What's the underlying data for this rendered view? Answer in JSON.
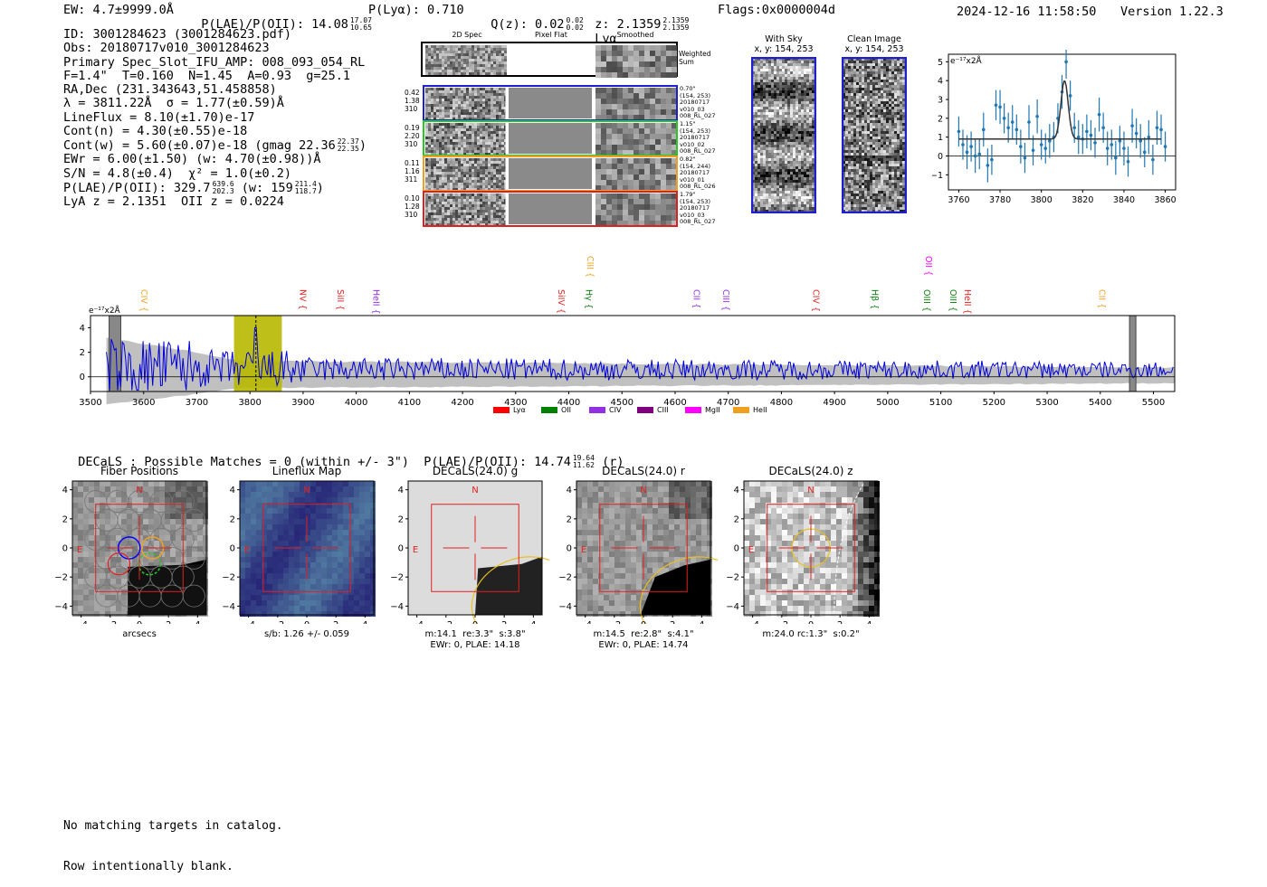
{
  "header": {
    "ew": "EW: 4.7±9999.0Å",
    "plae_label": "P(LAE)/P(OII): 14.08",
    "plae_hi": "17.07",
    "plae_lo": "10.65",
    "plya": "P(Lyα): 0.710",
    "qz_label": "Q(z): 0.02",
    "qz_hi": "0.02",
    "qz_lo": "0.02",
    "z_label": "z: 2.1359",
    "z_hi": "2.1359",
    "z_lo": "2.1359",
    "z_line": "Lyα",
    "flags": "Flags:0x0000004d",
    "datetime": "2024-12-16 11:58:50",
    "version": "Version 1.22.3"
  },
  "info": {
    "id": "ID: 3001284623 (3001284623.pdf)",
    "obs": "Obs: 20180717v010_3001284623",
    "primary": "Primary Spec_Slot_IFU_AMP: 008_093_054_RL",
    "params": "F=1.4\"  T=0.160  N=1.45  A=0.93  g=25.1",
    "radec": "RA,Dec (231.343643,51.458858)",
    "lambda": "λ = 3811.22Å  σ = 1.77(±0.59)Å",
    "lineflux": "LineFlux = 8.10(±1.70)e-17",
    "contn": "Cont(n) = 4.30(±0.55)e-18",
    "contw": "Cont(w) = 5.60(±0.07)e-18 (gmag 22.36",
    "gmag_hi": "22.37",
    "gmag_lo": "22.35",
    "contw_close": ")",
    "ewr": "EWr = 6.00(±1.50) (w: 4.70(±0.98))Å",
    "sn": "S/N = 4.8(±0.4)  χ² = 1.0(±0.2)",
    "plae2": "P(LAE)/P(OII): 329.7",
    "plae2_hi": "639.6",
    "plae2_lo": "202.3",
    "plae2_w": "(w: 159",
    "plae2_w_hi": "211.4",
    "plae2_w_lo": "118.7",
    "plae2_close": ")",
    "lyaz": "LyA z = 2.1351  OII z = 0.0224"
  },
  "cutouts": {
    "col_2d": "2D Spec",
    "col_flat": "Pixel Flat",
    "col_smooth": "Smoothed",
    "weighted": "Weighted\nSum",
    "rows": [
      {
        "left": "0.42\n1.38\n310",
        "right": "0.70\"\n(154, 253)\n20180717\nv010_03\n008_RL_027",
        "color": "#1f1fd0"
      },
      {
        "left": "0.19\n2.20\n310",
        "right": "1.15\"\n(154, 253)\n20180717\nv010_02\n008_RL_027",
        "color": "#22cc22"
      },
      {
        "left": "0.11\n1.16\n311",
        "right": "0.82\"\n(154, 244)\n20180717\nv010_01\n008_RL_026",
        "color": "#f0a020"
      },
      {
        "left": "0.10\n1.28\n310",
        "right": "1.79\"\n(154, 253)\n20180717\nv010_03\n008_RL_027",
        "color": "#e02020"
      }
    ]
  },
  "sky": {
    "with_sky": "With Sky",
    "with_sky_xy": "x, y: 154, 253",
    "clean": "Clean Image",
    "clean_xy": "x, y: 154, 253"
  },
  "zoom_chart": {
    "unit": "e⁻¹⁷x2Å",
    "x_ticks": [
      "3760",
      "3780",
      "3800",
      "3820",
      "3840",
      "3860"
    ],
    "y_ticks": [
      "5",
      "4",
      "3",
      "2",
      "1",
      "0",
      "−1"
    ]
  },
  "chart_data": [
    {
      "type": "scatter",
      "title": "",
      "xlabel": "",
      "ylabel": "e-17 x2Å",
      "xlim": [
        3755,
        3865
      ],
      "ylim": [
        -1.8,
        5.4
      ],
      "fit": {
        "center": 3811.22,
        "sigma": 1.77,
        "peak": 4.0,
        "continuum": 0.9
      },
      "x": [
        3760,
        3762,
        3764,
        3766,
        3768,
        3770,
        3772,
        3774,
        3776,
        3778,
        3780,
        3782,
        3784,
        3786,
        3788,
        3790,
        3792,
        3794,
        3796,
        3798,
        3800,
        3802,
        3804,
        3806,
        3808,
        3810,
        3812,
        3814,
        3816,
        3818,
        3820,
        3822,
        3824,
        3826,
        3828,
        3830,
        3832,
        3834,
        3836,
        3838,
        3840,
        3842,
        3844,
        3846,
        3848,
        3850,
        3852,
        3854,
        3856,
        3858,
        3860
      ],
      "y": [
        1.3,
        0.6,
        0.2,
        0.5,
        0.0,
        0.1,
        1.4,
        -0.5,
        -0.2,
        2.7,
        2.6,
        2.0,
        1.5,
        1.8,
        1.4,
        0.5,
        -0.1,
        1.8,
        0.3,
        2.1,
        0.6,
        0.4,
        0.8,
        1.0,
        2.0,
        3.4,
        5.0,
        3.2,
        1.5,
        1.0,
        0.9,
        1.3,
        1.1,
        0.7,
        2.2,
        1.5,
        0.4,
        0.6,
        -0.1,
        0.8,
        0.4,
        -0.3,
        1.6,
        1.2,
        0.8,
        0.2,
        1.0,
        -0.2,
        1.5,
        1.4,
        0.5
      ],
      "err": [
        0.8,
        0.8,
        0.9,
        0.8,
        0.9,
        0.8,
        0.9,
        0.9,
        0.8,
        0.8,
        0.9,
        0.8,
        0.8,
        0.9,
        0.8,
        0.9,
        0.8,
        0.9,
        0.8,
        0.9,
        0.8,
        0.8,
        0.9,
        0.8,
        0.8,
        0.9,
        0.9,
        0.8,
        0.8,
        0.9,
        0.8,
        0.9,
        0.8,
        0.8,
        0.9,
        0.8,
        0.9,
        0.8,
        0.9,
        0.8,
        0.9,
        0.8,
        0.9,
        0.8,
        0.9,
        0.8,
        0.9,
        0.8,
        0.9,
        0.8,
        0.8
      ]
    },
    {
      "type": "line",
      "title": "",
      "xlabel": "",
      "ylabel": "e-17 x2Å",
      "xlim": [
        3500,
        5540
      ],
      "ylim": [
        -1.2,
        5.0
      ],
      "x_ticks": [
        3500,
        3600,
        3700,
        3800,
        3900,
        4000,
        4100,
        4200,
        4300,
        4400,
        4500,
        4600,
        4700,
        4800,
        4900,
        5000,
        5100,
        5200,
        5300,
        5400,
        5500
      ],
      "y_ticks": [
        0,
        2,
        4
      ],
      "highlight_band": [
        3770,
        3860
      ],
      "line_center": 3811.22,
      "masked_bands": [
        [
          3535,
          3557
        ],
        [
          5455,
          5467
        ]
      ],
      "line_markers": [
        {
          "label": "CIV",
          "x": 3595,
          "color": "#f0a020",
          "row": "mid"
        },
        {
          "label": "NV",
          "x": 3894,
          "color": "#e02020",
          "row": "mid"
        },
        {
          "label": "SiII",
          "x": 3965,
          "color": "#e02020",
          "row": "mid"
        },
        {
          "label": "HeII",
          "x": 4032,
          "color": "#9030e0",
          "row": "mid"
        },
        {
          "label": "SiIV",
          "x": 4380,
          "color": "#e02020",
          "row": "mid"
        },
        {
          "label": "CIII",
          "x": 4435,
          "color": "#f0a020",
          "row": "high"
        },
        {
          "label": "Hγ",
          "x": 4432,
          "color": "#108010",
          "row": "mid"
        },
        {
          "label": "CII",
          "x": 4635,
          "color": "#9030e0",
          "row": "mid"
        },
        {
          "label": "CIII",
          "x": 4690,
          "color": "#9030e0",
          "row": "mid"
        },
        {
          "label": "CIV",
          "x": 4860,
          "color": "#e02020",
          "row": "mid"
        },
        {
          "label": "Hβ",
          "x": 4970,
          "color": "#108010",
          "row": "mid"
        },
        {
          "label": "OII",
          "x": 5072,
          "color": "#ff00ff",
          "row": "high"
        },
        {
          "label": "OIII",
          "x": 5068,
          "color": "#108010",
          "row": "mid"
        },
        {
          "label": "OIII",
          "x": 5118,
          "color": "#108010",
          "row": "mid"
        },
        {
          "label": "HeII",
          "x": 5145,
          "color": "#e02020",
          "row": "mid"
        },
        {
          "label": "CII",
          "x": 5398,
          "color": "#f0a020",
          "row": "mid"
        }
      ],
      "legend": [
        {
          "label": "Lyα",
          "color": "#ff0000"
        },
        {
          "label": "OII",
          "color": "#008000"
        },
        {
          "label": "CIV",
          "color": "#9030e0"
        },
        {
          "label": "CIII",
          "color": "#800080"
        },
        {
          "label": "MgII",
          "color": "#ff00ff"
        },
        {
          "label": "HeII",
          "color": "#f0a020"
        }
      ]
    }
  ],
  "spectrum": {
    "unit": "e⁻¹⁷x2Å"
  },
  "decals": {
    "summary": "DECaLS : Possible Matches = 0 (within +/- 3\")  P(LAE)/P(OII): 14.74",
    "summary_hi": "19.64",
    "summary_lo": "11.62",
    "summary_band": "(r)",
    "north": "N",
    "east": "E",
    "x_ticks": [
      "−4",
      "−2",
      "0",
      "2",
      "4"
    ],
    "y_ticks": [
      "4",
      "2",
      "0",
      "−2",
      "−4"
    ],
    "panels": [
      {
        "title": "Fiber Positions",
        "caption": "arcsecs"
      },
      {
        "title": "Lineflux Map",
        "caption": "s/b: 1.26 +/- 0.059"
      },
      {
        "title": "DECaLS(24.0) g",
        "caption": "m:14.1  re:3.3\"  s:3.8\"\nEWr: 0, PLAE: 14.18"
      },
      {
        "title": "DECaLS(24.0) r",
        "caption": "m:14.5  re:2.8\"  s:4.1\"\nEWr: 0, PLAE: 14.74"
      },
      {
        "title": "DECaLS(24.0) z",
        "caption": "m:24.0 rc:1.3\"  s:0.2\""
      }
    ]
  },
  "footer": {
    "line1": "No matching targets in catalog.",
    "line2": "Row intentionally blank."
  }
}
